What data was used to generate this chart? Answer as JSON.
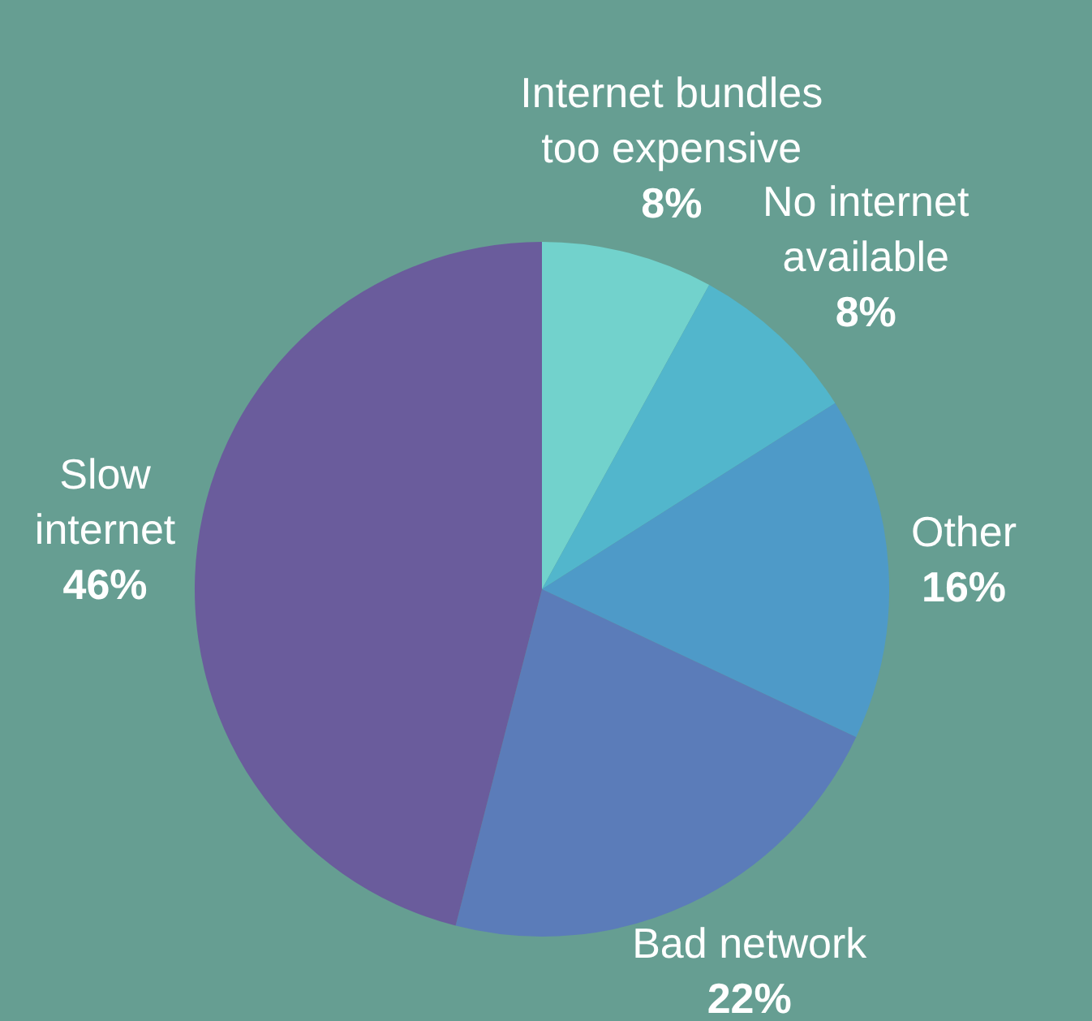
{
  "chart_data": {
    "type": "pie",
    "categories": [
      "Internet bundles too expensive",
      "No internet available",
      "Other",
      "Bad network",
      "Slow internet"
    ],
    "values": [
      8,
      8,
      16,
      22,
      46
    ],
    "value_labels": [
      "8%",
      "8%",
      "16%",
      "22%",
      "46%"
    ],
    "colors": [
      "#72d2cc",
      "#52b6cc",
      "#4e9ac8",
      "#5b7cb9",
      "#6a5c9c"
    ]
  }
}
